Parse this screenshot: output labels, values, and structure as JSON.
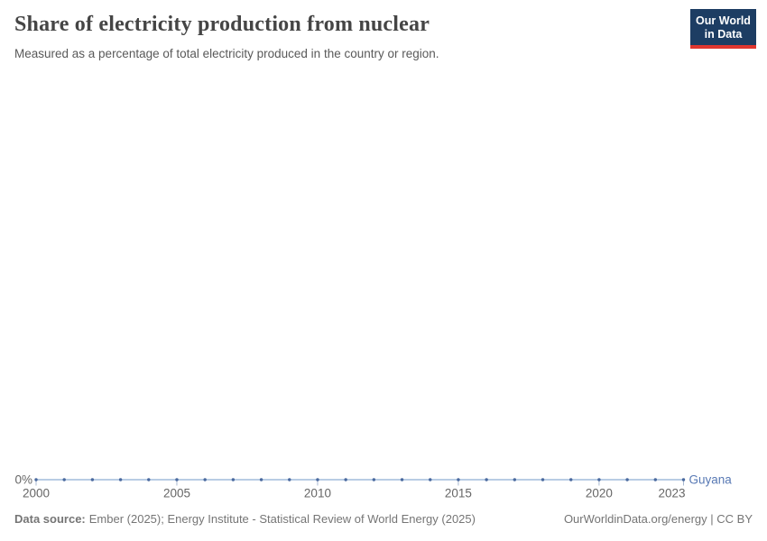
{
  "header": {
    "title": "Share of electricity production from nuclear",
    "subtitle": "Measured as a percentage of total electricity produced in the country or region."
  },
  "logo": {
    "line1": "Our World",
    "line2": "in Data",
    "bg_color": "#1d3d63",
    "accent_color": "#e0362f"
  },
  "chart_data": {
    "type": "line",
    "title": "Share of electricity production from nuclear",
    "entity": "Guyana",
    "unit": "%",
    "x": [
      2000,
      2001,
      2002,
      2003,
      2004,
      2005,
      2006,
      2007,
      2008,
      2009,
      2010,
      2011,
      2012,
      2013,
      2014,
      2015,
      2016,
      2017,
      2018,
      2019,
      2020,
      2021,
      2022,
      2023
    ],
    "series": [
      {
        "name": "Guyana",
        "values": [
          0,
          0,
          0,
          0,
          0,
          0,
          0,
          0,
          0,
          0,
          0,
          0,
          0,
          0,
          0,
          0,
          0,
          0,
          0,
          0,
          0,
          0,
          0,
          0
        ]
      }
    ],
    "x_ticks": [
      2000,
      2005,
      2010,
      2015,
      2020,
      2023
    ],
    "x_tick_labels": [
      "2000",
      "2005",
      "2010",
      "2015",
      "2020",
      "2023"
    ],
    "y_tick_labels": [
      "0%"
    ],
    "xlim": [
      2000,
      2023
    ],
    "grid": false,
    "legend_position": "end-of-line-label",
    "colors": {
      "line": "#a0bbdc",
      "marker": "#4a699e",
      "entity_label": "#5879b4",
      "axis_text": "#666666",
      "tick": "#a8b8d0"
    }
  },
  "footer": {
    "source_label": "Data source:",
    "source_text": "Ember (2025); Energy Institute - Statistical Review of World Energy (2025)",
    "rights": "OurWorldinData.org/energy | CC BY"
  }
}
